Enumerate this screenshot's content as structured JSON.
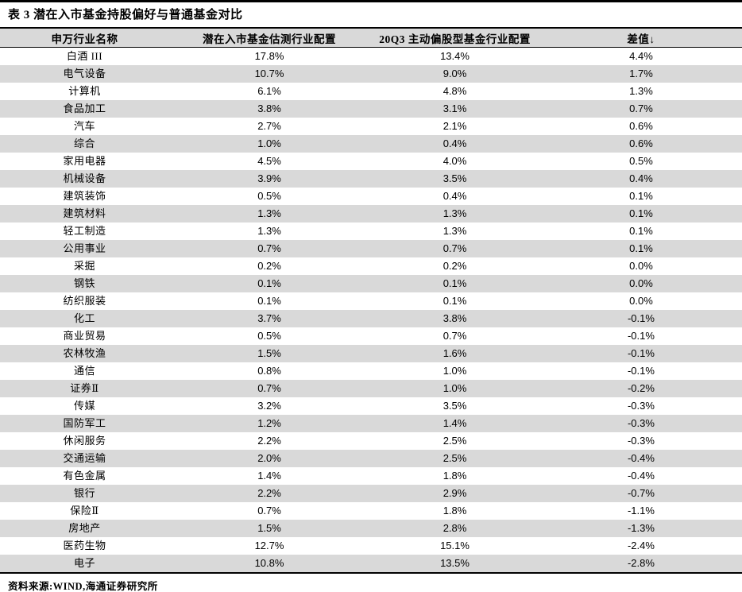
{
  "page": {
    "title": "表 3 潜在入市基金持股偏好与普通基金对比",
    "source": "资料来源:WIND,海通证券研究所"
  },
  "colors": {
    "stripe": "#d9d9d9",
    "rule": "#000000",
    "text": "#000000"
  },
  "table": {
    "columns": [
      "申万行业名称",
      "潜在入市基金估测行业配置",
      "20Q3 主动偏股型基金行业配置",
      "差值↓"
    ],
    "rows": [
      [
        "白酒 III",
        "17.8%",
        "13.4%",
        "4.4%"
      ],
      [
        "电气设备",
        "10.7%",
        "9.0%",
        "1.7%"
      ],
      [
        "计算机",
        "6.1%",
        "4.8%",
        "1.3%"
      ],
      [
        "食品加工",
        "3.8%",
        "3.1%",
        "0.7%"
      ],
      [
        "汽车",
        "2.7%",
        "2.1%",
        "0.6%"
      ],
      [
        "综合",
        "1.0%",
        "0.4%",
        "0.6%"
      ],
      [
        "家用电器",
        "4.5%",
        "4.0%",
        "0.5%"
      ],
      [
        "机械设备",
        "3.9%",
        "3.5%",
        "0.4%"
      ],
      [
        "建筑装饰",
        "0.5%",
        "0.4%",
        "0.1%"
      ],
      [
        "建筑材料",
        "1.3%",
        "1.3%",
        "0.1%"
      ],
      [
        "轻工制造",
        "1.3%",
        "1.3%",
        "0.1%"
      ],
      [
        "公用事业",
        "0.7%",
        "0.7%",
        "0.1%"
      ],
      [
        "采掘",
        "0.2%",
        "0.2%",
        "0.0%"
      ],
      [
        "钢铁",
        "0.1%",
        "0.1%",
        "0.0%"
      ],
      [
        "纺织服装",
        "0.1%",
        "0.1%",
        "0.0%"
      ],
      [
        "化工",
        "3.7%",
        "3.8%",
        "-0.1%"
      ],
      [
        "商业贸易",
        "0.5%",
        "0.7%",
        "-0.1%"
      ],
      [
        "农林牧渔",
        "1.5%",
        "1.6%",
        "-0.1%"
      ],
      [
        "通信",
        "0.8%",
        "1.0%",
        "-0.1%"
      ],
      [
        "证券Ⅱ",
        "0.7%",
        "1.0%",
        "-0.2%"
      ],
      [
        "传媒",
        "3.2%",
        "3.5%",
        "-0.3%"
      ],
      [
        "国防军工",
        "1.2%",
        "1.4%",
        "-0.3%"
      ],
      [
        "休闲服务",
        "2.2%",
        "2.5%",
        "-0.3%"
      ],
      [
        "交通运输",
        "2.0%",
        "2.5%",
        "-0.4%"
      ],
      [
        "有色金属",
        "1.4%",
        "1.8%",
        "-0.4%"
      ],
      [
        "银行",
        "2.2%",
        "2.9%",
        "-0.7%"
      ],
      [
        "保险Ⅱ",
        "0.7%",
        "1.8%",
        "-1.1%"
      ],
      [
        "房地产",
        "1.5%",
        "2.8%",
        "-1.3%"
      ],
      [
        "医药生物",
        "12.7%",
        "15.1%",
        "-2.4%"
      ],
      [
        "电子",
        "10.8%",
        "13.5%",
        "-2.8%"
      ]
    ]
  }
}
